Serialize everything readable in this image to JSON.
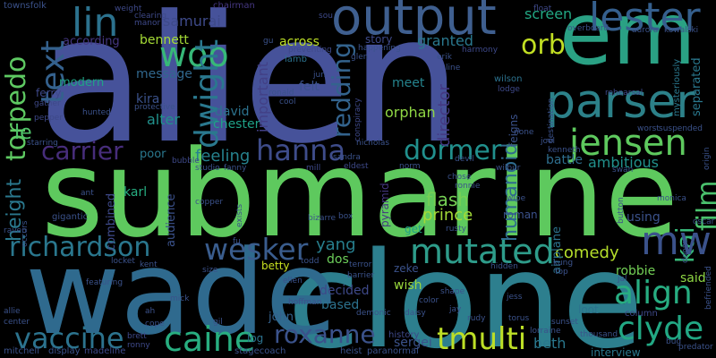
{
  "words": [
    {
      "text": "alien",
      "color": "#46529a"
    },
    {
      "text": "submarine",
      "color": "#5ec95e"
    },
    {
      "text": "clone",
      "color": "#2d7f8e"
    },
    {
      "text": "wade",
      "color": "#2f6a8e"
    },
    {
      "text": "em",
      "color": "#2aa184"
    },
    {
      "text": "output",
      "color": "#3f5f8f"
    },
    {
      "text": "parser",
      "color": "#2c8189"
    },
    {
      "text": "jensen",
      "color": "#5ec95e"
    },
    {
      "text": "mutated",
      "color": "#2e9c8a"
    },
    {
      "text": "richardson",
      "color": "#2a778e"
    },
    {
      "text": "wesker",
      "color": "#3a5d8e"
    },
    {
      "text": "lester",
      "color": "#355f8d"
    },
    {
      "text": "align",
      "color": "#27ad81"
    },
    {
      "text": "caine",
      "color": "#28ae80"
    },
    {
      "text": "clyde",
      "color": "#22a884"
    },
    {
      "text": "tmulti",
      "color": "#bddf26"
    },
    {
      "text": "vaccine",
      "color": "#2c738e"
    },
    {
      "text": "roxanne",
      "color": "#3b528b"
    },
    {
      "text": "hanna",
      "color": "#3e4c8a"
    },
    {
      "text": "dormer",
      "color": "#21908d"
    },
    {
      "text": "carrier",
      "color": "#472d7b"
    },
    {
      "text": "torpedo",
      "color": "#5ec962"
    },
    {
      "text": "lin",
      "color": "#2c728e"
    },
    {
      "text": "woo",
      "color": "#37b878"
    },
    {
      "text": "orb",
      "color": "#c2df23"
    },
    {
      "text": "dwight",
      "color": "#2a788e"
    },
    {
      "text": "text",
      "color": "#34618d"
    },
    {
      "text": "redding",
      "color": "#33638d"
    },
    {
      "text": "film",
      "color": "#4ac16d"
    },
    {
      "text": "kai",
      "color": "#37b878"
    },
    {
      "text": "mw",
      "color": "#3b528b"
    },
    {
      "text": "humanoid",
      "color": "#2f6b8e"
    },
    {
      "text": "director",
      "color": "#443983"
    },
    {
      "text": "height",
      "color": "#2a788e"
    },
    {
      "text": "le",
      "color": "#50c46a"
    },
    {
      "text": "important",
      "color": "#424086"
    },
    {
      "text": "feeling",
      "color": "#26828e"
    },
    {
      "text": "ambitious",
      "color": "#21918c"
    },
    {
      "text": "flash",
      "color": "#75d054"
    },
    {
      "text": "prince",
      "color": "#a2da37"
    },
    {
      "text": "comedy",
      "color": "#b5de2b"
    },
    {
      "text": "yang",
      "color": "#277f8e"
    },
    {
      "text": "dos",
      "color": "#6ccd5a"
    },
    {
      "text": "wish",
      "color": "#9bd93c"
    },
    {
      "text": "decided",
      "color": "#3e4989"
    },
    {
      "text": "based",
      "color": "#2c728e"
    },
    {
      "text": "sergei",
      "color": "#3b528b"
    },
    {
      "text": "beth",
      "color": "#2a788e"
    },
    {
      "text": "screen",
      "color": "#22a884"
    },
    {
      "text": "granted",
      "color": "#2a788e"
    },
    {
      "text": "across",
      "color": "#bddf26"
    },
    {
      "text": "story",
      "color": "#3e4989"
    },
    {
      "text": "meet",
      "color": "#25848e"
    },
    {
      "text": "orphan",
      "color": "#8fd744"
    },
    {
      "text": "samurai",
      "color": "#3e4a89"
    },
    {
      "text": "bennett",
      "color": "#a5db36"
    },
    {
      "text": "according",
      "color": "#453781"
    },
    {
      "text": "message",
      "color": "#31688e"
    },
    {
      "text": "modern",
      "color": "#20a386"
    },
    {
      "text": "kira",
      "color": "#3b528b"
    },
    {
      "text": "alter",
      "color": "#21918c"
    },
    {
      "text": "david",
      "color": "#2c728e"
    },
    {
      "text": "chester",
      "color": "#1fa187"
    },
    {
      "text": "battle",
      "color": "#2e6e8e"
    },
    {
      "text": "separated",
      "color": "#2a788e"
    },
    {
      "text": "said",
      "color": "#8fd744"
    },
    {
      "text": "robbie",
      "color": "#73d056"
    },
    {
      "text": "betty",
      "color": "#c8e020"
    },
    {
      "text": "john",
      "color": "#34618d"
    },
    {
      "text": "using",
      "color": "#3b528b"
    },
    {
      "text": "airplane",
      "color": "#2c728e"
    },
    {
      "text": "audience",
      "color": "#3b528b"
    },
    {
      "text": "combined",
      "color": "#3e4989"
    },
    {
      "text": "karl",
      "color": "#27ad81"
    },
    {
      "text": "poor",
      "color": "#2a788e"
    },
    {
      "text": "interview",
      "color": "#2a788e"
    },
    {
      "text": "loot",
      "color": "#2c728e"
    },
    {
      "text": "log",
      "color": "#2c728e"
    },
    {
      "text": "ferry",
      "color": "#3e4989"
    },
    {
      "text": "roman",
      "color": "#3b528b"
    },
    {
      "text": "get",
      "color": "#20a386"
    },
    {
      "text": "felt",
      "color": "#3b528b"
    },
    {
      "text": "lamb",
      "color": "#2c728e"
    },
    {
      "text": "chairman",
      "color": "#453781"
    },
    {
      "text": "wilson",
      "color": "#2c728e"
    },
    {
      "text": "pyramid",
      "color": "#453781"
    },
    {
      "text": "zeke",
      "color": "#3b528b"
    },
    {
      "text": "feigns",
      "color": "#3b528b"
    },
    {
      "text": "mysteriously",
      "color": "#2a788e"
    },
    {
      "text": "column",
      "color": "#3e4989"
    },
    {
      "text": "history",
      "color": "#3e4989"
    },
    {
      "text": "stagecoach",
      "color": "#3b528b"
    },
    {
      "text": "display",
      "color": "#3b528b"
    },
    {
      "text": "madeline",
      "color": "#3e4989"
    },
    {
      "text": "mitchell",
      "color": "#3b528b"
    },
    {
      "text": "heist",
      "color": "#3b528b"
    },
    {
      "text": "paranormal",
      "color": "#3b528b"
    },
    {
      "text": "predator",
      "color": "#3b528b"
    },
    {
      "text": "brett",
      "color": "#3e4989"
    },
    {
      "text": "ronny",
      "color": "#3e4989"
    },
    {
      "text": "townsfolk",
      "color": "#3b528b"
    },
    {
      "text": "weight",
      "color": "#3e4989"
    },
    {
      "text": "clearing",
      "color": "#3e4989"
    },
    {
      "text": "manor",
      "color": "#3e4989"
    },
    {
      "text": "float",
      "color": "#3e4989"
    },
    {
      "text": "overboard",
      "color": "#3b528b"
    },
    {
      "text": "aurora",
      "color": "#3b528b"
    },
    {
      "text": "kowalski",
      "color": "#3b528b"
    },
    {
      "text": "rehearsal",
      "color": "#3e4989"
    },
    {
      "text": "destination",
      "color": "#3b528b"
    },
    {
      "text": "lodge",
      "color": "#3e4989"
    },
    {
      "text": "joel",
      "color": "#3b528b"
    },
    {
      "text": "kenneth",
      "color": "#3b528b"
    },
    {
      "text": "worst",
      "color": "#3b528b"
    },
    {
      "text": "suspended",
      "color": "#3b528b"
    },
    {
      "text": "devil",
      "color": "#3b528b"
    },
    {
      "text": "wilbur",
      "color": "#3b528b"
    },
    {
      "text": "sandra",
      "color": "#3b528b"
    },
    {
      "text": "eldest",
      "color": "#3e4989"
    },
    {
      "text": "studio",
      "color": "#3b528b"
    },
    {
      "text": "fanny",
      "color": "#3b528b"
    },
    {
      "text": "mill",
      "color": "#3e4989"
    },
    {
      "text": "bubble",
      "color": "#3e4989"
    },
    {
      "text": "gigantic",
      "color": "#3b528b"
    },
    {
      "text": "raven",
      "color": "#3b528b"
    },
    {
      "text": "copper",
      "color": "#3b528b"
    },
    {
      "text": "exists",
      "color": "#3b528b"
    },
    {
      "text": "gather",
      "color": "#3e4989"
    },
    {
      "text": "pepper",
      "color": "#3e4989"
    },
    {
      "text": "hunted",
      "color": "#3b528b"
    },
    {
      "text": "protective",
      "color": "#3b528b"
    },
    {
      "text": "preventing",
      "color": "#3e4989"
    },
    {
      "text": "happening",
      "color": "#3b528b"
    },
    {
      "text": "glen",
      "color": "#3b528b"
    },
    {
      "text": "erik",
      "color": "#3b528b"
    },
    {
      "text": "harmony",
      "color": "#3e4989"
    },
    {
      "text": "line",
      "color": "#3b528b"
    },
    {
      "text": "conspiracy",
      "color": "#3e4989"
    },
    {
      "text": "ronald",
      "color": "#3b528b"
    },
    {
      "text": "cool",
      "color": "#3b528b"
    },
    {
      "text": "jun",
      "color": "#3b528b"
    },
    {
      "text": "sou",
      "color": "#3e4989"
    },
    {
      "text": "nicholas",
      "color": "#3b528b"
    },
    {
      "text": "chose",
      "color": "#3b528b"
    },
    {
      "text": "ronnie",
      "color": "#3b528b"
    },
    {
      "text": "wipe",
      "color": "#3b528b"
    },
    {
      "text": "rusty",
      "color": "#3b528b"
    },
    {
      "text": "swan",
      "color": "#3b528b"
    },
    {
      "text": "monica",
      "color": "#3b528b"
    },
    {
      "text": "button",
      "color": "#3b528b"
    },
    {
      "text": "doom",
      "color": "#3b528b"
    },
    {
      "text": "oscar",
      "color": "#3b528b"
    },
    {
      "text": "origin",
      "color": "#3b528b"
    },
    {
      "text": "bizarre",
      "color": "#3b528b"
    },
    {
      "text": "box",
      "color": "#3b528b"
    },
    {
      "text": "ant",
      "color": "#3b528b"
    },
    {
      "text": "occurs",
      "color": "#3b528b"
    },
    {
      "text": "kent",
      "color": "#3b528b"
    },
    {
      "text": "size",
      "color": "#3b528b"
    },
    {
      "text": "todd",
      "color": "#3b528b"
    },
    {
      "text": "terror",
      "color": "#3b528b"
    },
    {
      "text": "hidden",
      "color": "#3b528b"
    },
    {
      "text": "kung",
      "color": "#3b528b"
    },
    {
      "text": "top",
      "color": "#3b528b"
    },
    {
      "text": "featuring",
      "color": "#3b528b"
    },
    {
      "text": "ellen",
      "color": "#3b528b"
    },
    {
      "text": "barrier",
      "color": "#3b528b"
    },
    {
      "text": "shape",
      "color": "#3b528b"
    },
    {
      "text": "jess",
      "color": "#3b528b"
    },
    {
      "text": "jal",
      "color": "#3b528b"
    },
    {
      "text": "befriended",
      "color": "#3b528b"
    },
    {
      "text": "mick",
      "color": "#3b528b"
    },
    {
      "text": "hoffman",
      "color": "#3b528b"
    },
    {
      "text": "demonic",
      "color": "#3b528b"
    },
    {
      "text": "color",
      "color": "#3b528b"
    },
    {
      "text": "jay",
      "color": "#3b528b"
    },
    {
      "text": "allie",
      "color": "#3b528b"
    },
    {
      "text": "center",
      "color": "#3b528b"
    },
    {
      "text": "cope",
      "color": "#3b528b"
    },
    {
      "text": "daisy",
      "color": "#3b528b"
    },
    {
      "text": "rudy",
      "color": "#3b528b"
    },
    {
      "text": "torus",
      "color": "#3b528b"
    },
    {
      "text": "lorraine",
      "color": "#3b528b"
    },
    {
      "text": "sunset",
      "color": "#3b528b"
    },
    {
      "text": "thousand",
      "color": "#3b528b"
    },
    {
      "text": "bug",
      "color": "#3b528b"
    },
    {
      "text": "ah",
      "color": "#3b528b"
    },
    {
      "text": "gu",
      "color": "#3b528b"
    },
    {
      "text": "none",
      "color": "#3b528b"
    },
    {
      "text": "fu",
      "color": "#3b528b"
    },
    {
      "text": "gil",
      "color": "#3b528b"
    },
    {
      "text": "starring",
      "color": "#3b528b"
    },
    {
      "text": "norm",
      "color": "#3b528b"
    },
    {
      "text": "locket",
      "color": "#3b528b"
    }
  ]
}
